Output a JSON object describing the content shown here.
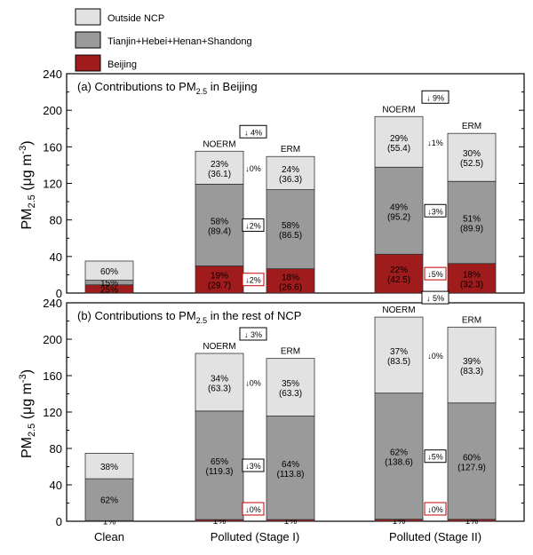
{
  "legend": [
    {
      "label": "Outside NCP",
      "color": "#e2e2e2"
    },
    {
      "label": "Tianjin+Hebei+Henan+Shandong",
      "color": "#9a9a9a"
    },
    {
      "label": "Beijing",
      "color": "#a01c1c"
    }
  ],
  "y_label": {
    "main": "PM",
    "sub": "2.5",
    "unit_open": " (μg m",
    "unit_sup": "-3",
    "unit_close": ")"
  },
  "categories": [
    "Clean",
    "Polluted (Stage I)",
    "Polluted (Stage II)"
  ],
  "colors": {
    "outside": "#e2e2e2",
    "tjhhs": "#9a9a9a",
    "beijing": "#a01c1c",
    "reduction_box_gray": "#000000",
    "reduction_box_red": "#c00000"
  },
  "chart_data": [
    {
      "type": "bar",
      "stacked": true,
      "title": {
        "prefix": "(a) Contributions to PM",
        "sub": "2.5",
        "suffix": " in Beijing"
      },
      "ylim": [
        0,
        240
      ],
      "yticks": [
        0,
        40,
        80,
        120,
        160,
        200,
        240
      ],
      "grid": false,
      "series": [
        "Beijing",
        "Tianjin+Hebei+Henan+Shandong",
        "Outside NCP"
      ],
      "bars": [
        {
          "category": "Clean",
          "label": "",
          "segments": [
            {
              "series": "Beijing",
              "value": 9,
              "pct": "25%",
              "val": ""
            },
            {
              "series": "Tianjin+Hebei+Henan+Shandong",
              "value": 5,
              "pct": "15%",
              "val": ""
            },
            {
              "series": "Outside NCP",
              "value": 21,
              "pct": "60%",
              "val": ""
            }
          ]
        },
        {
          "category": "Polluted (Stage I)",
          "label": "NOERM",
          "segments": [
            {
              "series": "Beijing",
              "value": 29.7,
              "pct": "19%",
              "val": "(29.7)"
            },
            {
              "series": "Tianjin+Hebei+Henan+Shandong",
              "value": 89.4,
              "pct": "58%",
              "val": "(89.4)"
            },
            {
              "series": "Outside NCP",
              "value": 36.1,
              "pct": "23%",
              "val": "(36.1)"
            }
          ]
        },
        {
          "category": "Polluted (Stage I)",
          "label": "ERM",
          "segments": [
            {
              "series": "Beijing",
              "value": 26.6,
              "pct": "18%",
              "val": "(26.6)"
            },
            {
              "series": "Tianjin+Hebei+Henan+Shandong",
              "value": 86.5,
              "pct": "58%",
              "val": "(86.5)"
            },
            {
              "series": "Outside NCP",
              "value": 36.3,
              "pct": "24%",
              "val": "(36.3)"
            }
          ]
        },
        {
          "category": "Polluted (Stage II)",
          "label": "NOERM",
          "segments": [
            {
              "series": "Beijing",
              "value": 42.5,
              "pct": "22%",
              "val": "(42.5)"
            },
            {
              "series": "Tianjin+Hebei+Henan+Shandong",
              "value": 95.2,
              "pct": "49%",
              "val": "(95.2)"
            },
            {
              "series": "Outside NCP",
              "value": 55.4,
              "pct": "29%",
              "val": "(55.4)"
            }
          ]
        },
        {
          "category": "Polluted (Stage II)",
          "label": "ERM",
          "segments": [
            {
              "series": "Beijing",
              "value": 32.3,
              "pct": "18%",
              "val": "(32.3)"
            },
            {
              "series": "Tianjin+Hebei+Henan+Shandong",
              "value": 89.9,
              "pct": "51%",
              "val": "(89.9)"
            },
            {
              "series": "Outside NCP",
              "value": 52.5,
              "pct": "30%",
              "val": "(52.5)"
            }
          ]
        }
      ],
      "reductions": [
        {
          "group": 1,
          "text": "↓ 4%",
          "level": "total",
          "boxed": true
        },
        {
          "group": 1,
          "text": "↓0%",
          "level": "outside",
          "boxed": false
        },
        {
          "group": 1,
          "text": "↓2%",
          "level": "tjhhs",
          "boxed": true
        },
        {
          "group": 1,
          "text": "↓2%",
          "level": "beijing",
          "boxed": true,
          "red": true
        },
        {
          "group": 2,
          "text": "↓ 9%",
          "level": "total",
          "boxed": true
        },
        {
          "group": 2,
          "text": "↓1%",
          "level": "outside",
          "boxed": false
        },
        {
          "group": 2,
          "text": "↓3%",
          "level": "tjhhs",
          "boxed": true
        },
        {
          "group": 2,
          "text": "↓5%",
          "level": "beijing",
          "boxed": true,
          "red": true
        }
      ]
    },
    {
      "type": "bar",
      "stacked": true,
      "title": {
        "prefix": "(b) Contributions to PM",
        "sub": "2.5",
        "suffix": " in the rest of NCP"
      },
      "ylim": [
        0,
        240
      ],
      "yticks": [
        0,
        40,
        80,
        120,
        160,
        200,
        240
      ],
      "grid": false,
      "series": [
        "Beijing",
        "Tianjin+Hebei+Henan+Shandong",
        "Outside NCP"
      ],
      "bars": [
        {
          "category": "Clean",
          "label": "",
          "segments": [
            {
              "series": "Beijing",
              "value": 0.7,
              "pct": "1%",
              "val": ""
            },
            {
              "series": "Tianjin+Hebei+Henan+Shandong",
              "value": 46,
              "pct": "62%",
              "val": ""
            },
            {
              "series": "Outside NCP",
              "value": 28,
              "pct": "38%",
              "val": ""
            }
          ]
        },
        {
          "category": "Polluted (Stage I)",
          "label": "NOERM",
          "segments": [
            {
              "series": "Beijing",
              "value": 1.8,
              "pct": "1%",
              "val": ""
            },
            {
              "series": "Tianjin+Hebei+Henan+Shandong",
              "value": 119.3,
              "pct": "65%",
              "val": "(119.3)"
            },
            {
              "series": "Outside NCP",
              "value": 63.3,
              "pct": "34%",
              "val": "(63.3)"
            }
          ]
        },
        {
          "category": "Polluted (Stage I)",
          "label": "ERM",
          "segments": [
            {
              "series": "Beijing",
              "value": 1.8,
              "pct": "1%",
              "val": ""
            },
            {
              "series": "Tianjin+Hebei+Henan+Shandong",
              "value": 113.8,
              "pct": "64%",
              "val": "(113.8)"
            },
            {
              "series": "Outside NCP",
              "value": 63.3,
              "pct": "35%",
              "val": "(63.3)"
            }
          ]
        },
        {
          "category": "Polluted (Stage II)",
          "label": "NOERM",
          "segments": [
            {
              "series": "Beijing",
              "value": 2.2,
              "pct": "1%",
              "val": ""
            },
            {
              "series": "Tianjin+Hebei+Henan+Shandong",
              "value": 138.6,
              "pct": "62%",
              "val": "(138.6)"
            },
            {
              "series": "Outside NCP",
              "value": 83.5,
              "pct": "37%",
              "val": "(83.5)"
            }
          ]
        },
        {
          "category": "Polluted (Stage II)",
          "label": "ERM",
          "segments": [
            {
              "series": "Beijing",
              "value": 2.1,
              "pct": "1%",
              "val": ""
            },
            {
              "series": "Tianjin+Hebei+Henan+Shandong",
              "value": 127.9,
              "pct": "60%",
              "val": "(127.9)"
            },
            {
              "series": "Outside NCP",
              "value": 83.3,
              "pct": "39%",
              "val": "(83.3)"
            }
          ]
        }
      ],
      "reductions": [
        {
          "group": 1,
          "text": "↓ 3%",
          "level": "total",
          "boxed": true
        },
        {
          "group": 1,
          "text": "↓0%",
          "level": "outside",
          "boxed": false
        },
        {
          "group": 1,
          "text": "↓3%",
          "level": "tjhhs",
          "boxed": true
        },
        {
          "group": 1,
          "text": "↓0%",
          "level": "beijing",
          "boxed": true,
          "red": true
        },
        {
          "group": 2,
          "text": "↓ 5%",
          "level": "total",
          "boxed": true
        },
        {
          "group": 2,
          "text": "↓0%",
          "level": "outside",
          "boxed": false
        },
        {
          "group": 2,
          "text": "↓5%",
          "level": "tjhhs",
          "boxed": true
        },
        {
          "group": 2,
          "text": "↓0%",
          "level": "beijing",
          "boxed": true,
          "red": true
        }
      ]
    }
  ]
}
